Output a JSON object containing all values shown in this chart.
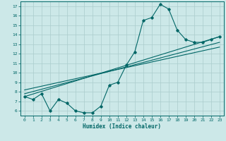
{
  "xlabel": "Humidex (Indice chaleur)",
  "bg_color": "#cce8e8",
  "line_color": "#006666",
  "xlim": [
    -0.5,
    23.5
  ],
  "ylim": [
    5.5,
    17.5
  ],
  "xticks": [
    0,
    1,
    2,
    3,
    4,
    5,
    6,
    7,
    8,
    9,
    10,
    11,
    12,
    13,
    14,
    15,
    16,
    17,
    18,
    19,
    20,
    21,
    22,
    23
  ],
  "yticks": [
    6,
    7,
    8,
    9,
    10,
    11,
    12,
    13,
    14,
    15,
    16,
    17
  ],
  "grid_color": "#aacccc",
  "main_line_x": [
    0,
    1,
    2,
    3,
    4,
    5,
    6,
    7,
    8,
    9,
    10,
    11,
    12,
    13,
    14,
    15,
    16,
    17,
    18,
    19,
    20,
    21,
    22,
    23
  ],
  "main_line_y": [
    7.5,
    7.2,
    7.8,
    6.0,
    7.2,
    6.8,
    6.0,
    5.8,
    5.8,
    6.5,
    8.7,
    9.0,
    10.8,
    12.2,
    15.5,
    15.8,
    17.2,
    16.7,
    14.5,
    13.5,
    13.2,
    13.2,
    13.5,
    13.8
  ],
  "reg_line1_x": [
    0,
    23
  ],
  "reg_line1_y": [
    7.5,
    13.8
  ],
  "reg_line2_x": [
    0,
    23
  ],
  "reg_line2_y": [
    7.8,
    13.2
  ],
  "reg_line3_x": [
    0,
    23
  ],
  "reg_line3_y": [
    8.2,
    12.7
  ]
}
